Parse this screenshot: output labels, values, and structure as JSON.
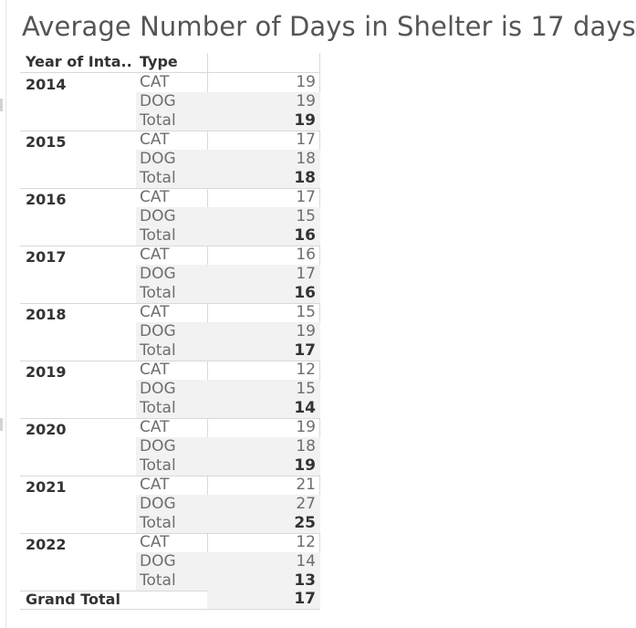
{
  "title": "Average Number of Days in Shelter is 17 days",
  "chart_data": {
    "type": "table",
    "title": "Average Number of Days in Shelter is 17 days",
    "columns": [
      "Year of Inta..",
      "Type",
      ""
    ],
    "rows": [
      {
        "year": "2014",
        "items": [
          {
            "type": "CAT",
            "value": "19"
          },
          {
            "type": "DOG",
            "value": "19"
          },
          {
            "type": "Total",
            "value": "19"
          }
        ]
      },
      {
        "year": "2015",
        "items": [
          {
            "type": "CAT",
            "value": "17"
          },
          {
            "type": "DOG",
            "value": "18"
          },
          {
            "type": "Total",
            "value": "18"
          }
        ]
      },
      {
        "year": "2016",
        "items": [
          {
            "type": "CAT",
            "value": "17"
          },
          {
            "type": "DOG",
            "value": "15"
          },
          {
            "type": "Total",
            "value": "16"
          }
        ]
      },
      {
        "year": "2017",
        "items": [
          {
            "type": "CAT",
            "value": "16"
          },
          {
            "type": "DOG",
            "value": "17"
          },
          {
            "type": "Total",
            "value": "16"
          }
        ]
      },
      {
        "year": "2018",
        "items": [
          {
            "type": "CAT",
            "value": "15"
          },
          {
            "type": "DOG",
            "value": "19"
          },
          {
            "type": "Total",
            "value": "17"
          }
        ]
      },
      {
        "year": "2019",
        "items": [
          {
            "type": "CAT",
            "value": "12"
          },
          {
            "type": "DOG",
            "value": "15"
          },
          {
            "type": "Total",
            "value": "14"
          }
        ]
      },
      {
        "year": "2020",
        "items": [
          {
            "type": "CAT",
            "value": "19"
          },
          {
            "type": "DOG",
            "value": "18"
          },
          {
            "type": "Total",
            "value": "19"
          }
        ]
      },
      {
        "year": "2021",
        "items": [
          {
            "type": "CAT",
            "value": "21"
          },
          {
            "type": "DOG",
            "value": "27"
          },
          {
            "type": "Total",
            "value": "25"
          }
        ]
      },
      {
        "year": "2022",
        "items": [
          {
            "type": "CAT",
            "value": "12"
          },
          {
            "type": "DOG",
            "value": "14"
          },
          {
            "type": "Total",
            "value": "13"
          }
        ]
      }
    ],
    "grand_total": {
      "label": "Grand Total",
      "value": "17"
    }
  },
  "colors": {
    "shade": "#f2f2f2",
    "grid": "#d9d9d9",
    "text_dark": "#333333",
    "text_light": "#6e6e6e"
  }
}
